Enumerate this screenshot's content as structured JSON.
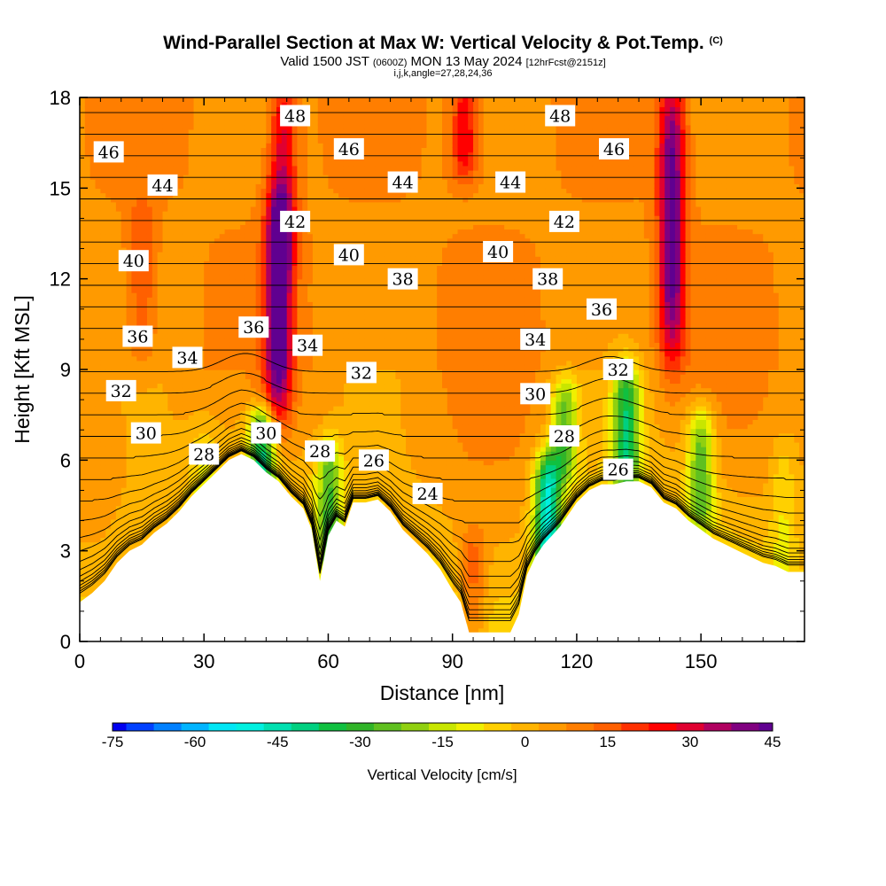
{
  "figure": {
    "title": "Wind-Parallel Section at Max W: Vertical Velocity & Pot.Temp.",
    "title_mark": "(C)",
    "valid_prefix": "Valid 1500 JST",
    "valid_utc": "(0600Z)",
    "valid_date": "MON 13 May 2024",
    "forecast": "[12hrFcst@2151z]",
    "indices": "i,j,k,angle=27,28,24,36"
  },
  "chart_data": {
    "type": "heatmap",
    "xlabel": "Distance [nm]",
    "ylabel": "Height [Kft MSL]",
    "xlim": [
      0,
      175
    ],
    "ylim": [
      0,
      18
    ],
    "x_ticks": [
      0,
      30,
      60,
      90,
      120,
      150
    ],
    "y_ticks": [
      0,
      3,
      6,
      9,
      12,
      15,
      18
    ],
    "terrain": {
      "x": [
        0,
        3,
        6,
        9,
        12,
        15,
        18,
        21,
        24,
        27,
        30,
        33,
        36,
        39,
        42,
        45,
        48,
        51,
        54,
        56,
        58,
        60,
        62,
        64,
        66,
        69,
        72,
        75,
        78,
        81,
        84,
        87,
        90,
        92,
        94,
        96,
        98,
        100,
        102,
        104,
        106,
        108,
        110,
        112,
        114,
        116,
        118,
        120,
        123,
        126,
        129,
        132,
        135,
        138,
        141,
        144,
        147,
        150,
        153,
        156,
        159,
        162,
        165,
        168,
        171,
        175
      ],
      "height": [
        1.3,
        1.6,
        2.0,
        2.6,
        3.0,
        3.2,
        3.6,
        3.9,
        4.3,
        4.8,
        5.2,
        5.6,
        6.0,
        6.2,
        6.0,
        5.6,
        5.3,
        4.8,
        4.4,
        3.7,
        2.0,
        3.5,
        4.0,
        3.8,
        4.6,
        4.6,
        4.7,
        4.3,
        3.7,
        3.3,
        2.9,
        2.4,
        1.7,
        1.3,
        0.3,
        0.3,
        0.3,
        0.3,
        0.3,
        0.3,
        0.9,
        2.2,
        2.8,
        3.2,
        3.5,
        3.8,
        4.2,
        4.6,
        5.0,
        5.2,
        5.2,
        5.3,
        5.3,
        5.1,
        4.6,
        4.4,
        4.0,
        3.7,
        3.4,
        3.2,
        3.0,
        2.8,
        2.6,
        2.5,
        2.3,
        2.3
      ]
    },
    "vertical_velocity": {
      "label": "Vertical Velocity [cm/s]",
      "colorbar_ticks": [
        -75,
        -60,
        -45,
        -30,
        -15,
        0,
        15,
        30,
        45
      ],
      "colorbar_levels": [
        -75,
        -70,
        -65,
        -60,
        -55,
        -50,
        -45,
        -40,
        -35,
        -30,
        -25,
        -20,
        -15,
        -10,
        -5,
        0,
        5,
        10,
        15,
        20,
        25,
        30,
        35,
        40,
        45
      ],
      "colors": [
        "#0000f0",
        "#0040ff",
        "#0080ff",
        "#00b4ff",
        "#00e6f5",
        "#00f0e0",
        "#00e0b0",
        "#00d080",
        "#10c040",
        "#30b428",
        "#60c020",
        "#90d010",
        "#c8e600",
        "#f0f000",
        "#ffd000",
        "#ffb400",
        "#ff9a00",
        "#ff7e00",
        "#ff6000",
        "#ff3000",
        "#ff0000",
        "#e00030",
        "#b00060",
        "#800080",
        "#600090"
      ],
      "features": [
        {
          "x": 48,
          "z_bottom": 8.0,
          "z_top": 14.0,
          "w": 42
        },
        {
          "x": 143,
          "z_bottom": 10.0,
          "z_top": 18.0,
          "w": 38
        },
        {
          "x": 49,
          "z_bottom": 13.0,
          "z_top": 18.0,
          "w": 24
        },
        {
          "x": 93,
          "z_bottom": 16.0,
          "z_top": 18.0,
          "w": 22
        },
        {
          "x": 113,
          "z_bottom": 2.8,
          "z_top": 5.5,
          "w": -50
        },
        {
          "x": 44,
          "z_bottom": 5.5,
          "z_top": 7.0,
          "w": -40
        },
        {
          "x": 132,
          "z_bottom": 5.5,
          "z_top": 8.5,
          "w": -38
        },
        {
          "x": 60,
          "z_bottom": 3.0,
          "z_top": 6.0,
          "w": -30
        },
        {
          "x": 117,
          "z_bottom": 6.0,
          "z_top": 8.0,
          "w": -28
        },
        {
          "x": 150,
          "z_bottom": 4.5,
          "z_top": 7.0,
          "w": -30
        },
        {
          "x": 95,
          "z_bottom": 0.5,
          "z_top": 3.0,
          "w": 14
        },
        {
          "x": 15,
          "z_bottom": 10.0,
          "z_top": 14.0,
          "w": 12
        },
        {
          "x": 170,
          "z_bottom": 2.5,
          "z_top": 6.0,
          "w": -10
        },
        {
          "x": 30,
          "z_bottom": 4.0,
          "z_top": 6.5,
          "w": -8
        }
      ]
    },
    "potential_temperature": {
      "unit": "C",
      "labels": [
        {
          "text": "48",
          "x": 52,
          "z": 17.4
        },
        {
          "text": "48",
          "x": 116,
          "z": 17.4
        },
        {
          "text": "46",
          "x": 7,
          "z": 16.2
        },
        {
          "text": "46",
          "x": 65,
          "z": 16.3
        },
        {
          "text": "46",
          "x": 129,
          "z": 16.3
        },
        {
          "text": "44",
          "x": 20,
          "z": 15.1
        },
        {
          "text": "44",
          "x": 78,
          "z": 15.2
        },
        {
          "text": "44",
          "x": 104,
          "z": 15.2
        },
        {
          "text": "42",
          "x": 52,
          "z": 13.9
        },
        {
          "text": "42",
          "x": 117,
          "z": 13.9
        },
        {
          "text": "40",
          "x": 13,
          "z": 12.6
        },
        {
          "text": "40",
          "x": 65,
          "z": 12.8
        },
        {
          "text": "40",
          "x": 101,
          "z": 12.9
        },
        {
          "text": "38",
          "x": 78,
          "z": 12.0
        },
        {
          "text": "38",
          "x": 113,
          "z": 12.0
        },
        {
          "text": "36",
          "x": 14,
          "z": 10.1
        },
        {
          "text": "36",
          "x": 42,
          "z": 10.4
        },
        {
          "text": "36",
          "x": 126,
          "z": 11.0
        },
        {
          "text": "34",
          "x": 26,
          "z": 9.4
        },
        {
          "text": "34",
          "x": 55,
          "z": 9.8
        },
        {
          "text": "34",
          "x": 110,
          "z": 10.0
        },
        {
          "text": "32",
          "x": 10,
          "z": 8.3
        },
        {
          "text": "32",
          "x": 68,
          "z": 8.9
        },
        {
          "text": "32",
          "x": 130,
          "z": 9.0
        },
        {
          "text": "30",
          "x": 16,
          "z": 6.9
        },
        {
          "text": "30",
          "x": 45,
          "z": 6.9
        },
        {
          "text": "30",
          "x": 110,
          "z": 8.2
        },
        {
          "text": "28",
          "x": 30,
          "z": 6.2
        },
        {
          "text": "28",
          "x": 58,
          "z": 6.3
        },
        {
          "text": "28",
          "x": 117,
          "z": 6.8
        },
        {
          "text": "26",
          "x": 71,
          "z": 6.0
        },
        {
          "text": "26",
          "x": 130,
          "z": 5.7
        },
        {
          "text": "24",
          "x": 84,
          "z": 4.9
        }
      ]
    }
  }
}
